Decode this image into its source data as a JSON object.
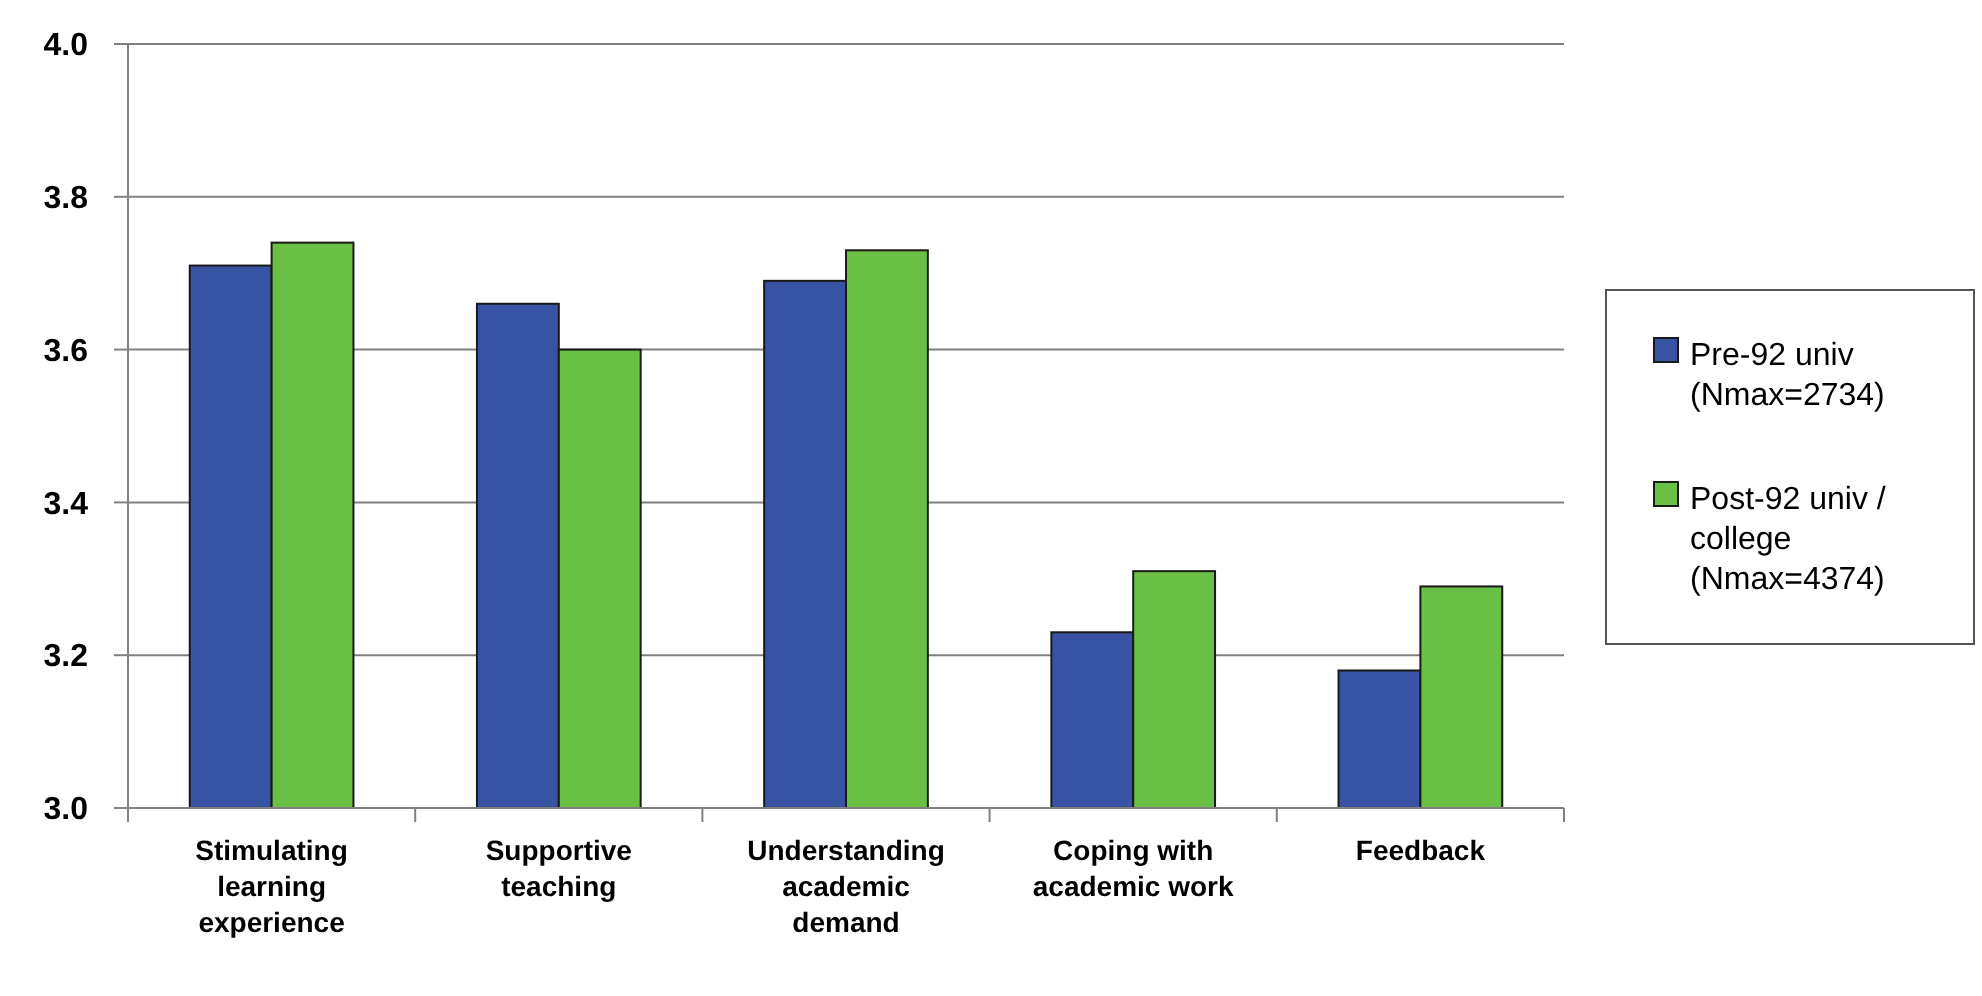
{
  "chart_data": {
    "type": "bar",
    "categories": [
      "Stimulating learning experience",
      "Supportive teaching",
      "Understanding academic demand",
      "Coping with academic work",
      "Feedback"
    ],
    "series": [
      {
        "name": "Pre-92 univ (Nmax=2734)",
        "color": "#3953a4",
        "values": [
          3.71,
          3.66,
          3.69,
          3.23,
          3.18
        ]
      },
      {
        "name": "Post-92 univ / college (Nmax=4374)",
        "color": "#6abf45",
        "values": [
          3.74,
          3.6,
          3.73,
          3.31,
          3.29
        ]
      }
    ],
    "ylim": [
      3.0,
      4.0
    ],
    "yticks": [
      {
        "value": 3.0,
        "label": "3.0"
      },
      3.2,
      3.4,
      3.6,
      3.8,
      {
        "value": 4.0,
        "label": "4.0"
      }
    ],
    "grid": "y",
    "legend": "right"
  }
}
